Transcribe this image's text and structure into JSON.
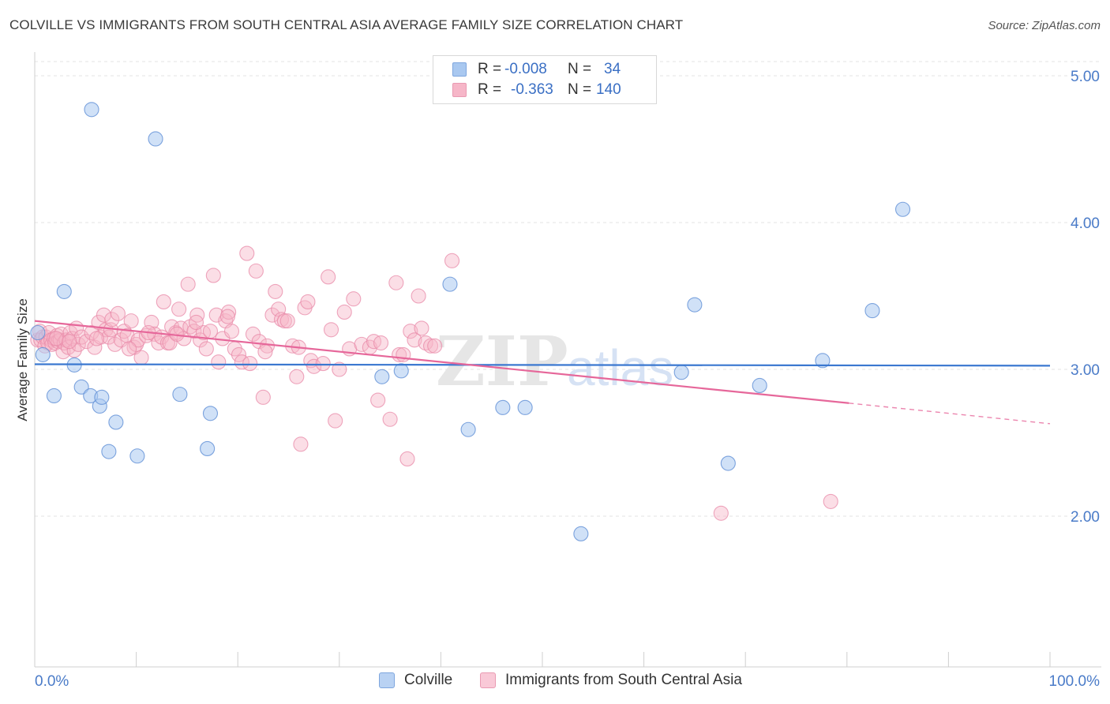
{
  "header": {
    "title": "COLVILLE VS IMMIGRANTS FROM SOUTH CENTRAL ASIA AVERAGE FAMILY SIZE CORRELATION CHART",
    "source": "Source: ZipAtlas.com"
  },
  "legend": {
    "rows": [
      {
        "r_label": "R =",
        "r_value": "-0.008",
        "n_label": "N =",
        "n_value": "34",
        "color": "#a9c8f0"
      },
      {
        "r_label": "R =",
        "r_value": "-0.363",
        "n_label": "N =",
        "n_value": "140",
        "color": "#f6b6c8"
      }
    ]
  },
  "bottom_legend": {
    "series_a": "Colville",
    "series_b": "Immigrants from South Central Asia"
  },
  "colors": {
    "colville_fill": "#a9c8f0",
    "colville_stroke": "#5f8fd6",
    "colville_line": "#3b78d0",
    "immigrants_fill": "#f6b6c8",
    "immigrants_stroke": "#e889a8",
    "immigrants_line": "#e6679a",
    "tick_text": "#4a7bc8",
    "grid": "#e3e3e3"
  },
  "chart_data": {
    "type": "scatter",
    "title": "COLVILLE VS IMMIGRANTS FROM SOUTH CENTRAL ASIA AVERAGE FAMILY SIZE CORRELATION CHART",
    "xlabel": "",
    "ylabel": "Average Family Size",
    "xlim": [
      0,
      100
    ],
    "ylim": [
      1.0,
      5.15
    ],
    "x_tick_labels": [
      "0.0%",
      "100.0%"
    ],
    "y_ticks": [
      2.0,
      3.0,
      4.0,
      5.0
    ],
    "y_tick_labels": [
      "2.00",
      "3.00",
      "4.00",
      "5.00"
    ],
    "grid": "horizontal dashed",
    "legend_position": "top-center",
    "watermark": "ZIPatlas",
    "series": [
      {
        "name": "Colville",
        "r": -0.008,
        "n": 34,
        "trend": {
          "x": [
            0,
            100
          ],
          "y": [
            3.035,
            3.025
          ]
        },
        "points": [
          [
            0.3,
            3.25
          ],
          [
            0.8,
            3.1
          ],
          [
            1.9,
            2.82
          ],
          [
            2.9,
            3.53
          ],
          [
            3.9,
            3.03
          ],
          [
            4.6,
            2.88
          ],
          [
            5.5,
            2.82
          ],
          [
            5.6,
            4.77
          ],
          [
            6.4,
            2.75
          ],
          [
            6.6,
            2.81
          ],
          [
            7.3,
            2.44
          ],
          [
            8.0,
            2.64
          ],
          [
            10.1,
            2.41
          ],
          [
            11.9,
            4.57
          ],
          [
            14.3,
            2.83
          ],
          [
            17.0,
            2.46
          ],
          [
            17.3,
            2.7
          ],
          [
            34.2,
            2.95
          ],
          [
            36.1,
            2.99
          ],
          [
            40.9,
            3.58
          ],
          [
            42.7,
            2.59
          ],
          [
            46.1,
            2.74
          ],
          [
            48.3,
            2.74
          ],
          [
            53.8,
            1.88
          ],
          [
            63.7,
            2.98
          ],
          [
            65.0,
            3.44
          ],
          [
            68.3,
            2.36
          ],
          [
            71.4,
            2.89
          ],
          [
            77.6,
            3.06
          ],
          [
            82.5,
            3.4
          ],
          [
            85.5,
            4.09
          ]
        ]
      },
      {
        "name": "Immigrants from South Central Asia",
        "r": -0.363,
        "n": 140,
        "trend": {
          "x": [
            0,
            80.2
          ],
          "y": [
            3.33,
            2.77
          ]
        },
        "trend_dashed": {
          "x": [
            80.2,
            100
          ],
          "y": [
            2.77,
            2.63
          ]
        },
        "points": [
          [
            0.3,
            3.2
          ],
          [
            0.5,
            3.26
          ],
          [
            0.6,
            3.2
          ],
          [
            0.8,
            3.22
          ],
          [
            1.0,
            3.16
          ],
          [
            1.1,
            3.22
          ],
          [
            1.3,
            3.18
          ],
          [
            1.4,
            3.25
          ],
          [
            1.6,
            3.2
          ],
          [
            1.7,
            3.17
          ],
          [
            1.9,
            3.21
          ],
          [
            2.0,
            3.18
          ],
          [
            2.2,
            3.23
          ],
          [
            2.3,
            3.19
          ],
          [
            2.5,
            3.2
          ],
          [
            2.6,
            3.24
          ],
          [
            2.8,
            3.12
          ],
          [
            2.9,
            3.18
          ],
          [
            3.1,
            3.2
          ],
          [
            3.3,
            3.15
          ],
          [
            3.5,
            3.25
          ],
          [
            3.7,
            3.21
          ],
          [
            3.9,
            3.13
          ],
          [
            4.1,
            3.28
          ],
          [
            4.3,
            3.17
          ],
          [
            4.6,
            3.22
          ],
          [
            5.1,
            3.19
          ],
          [
            5.6,
            3.25
          ],
          [
            5.9,
            3.15
          ],
          [
            6.3,
            3.32
          ],
          [
            6.5,
            3.22
          ],
          [
            6.8,
            3.37
          ],
          [
            7.0,
            3.27
          ],
          [
            7.3,
            3.22
          ],
          [
            7.5,
            3.27
          ],
          [
            7.6,
            3.34
          ],
          [
            7.9,
            3.17
          ],
          [
            8.2,
            3.38
          ],
          [
            8.5,
            3.2
          ],
          [
            8.8,
            3.26
          ],
          [
            9.1,
            3.23
          ],
          [
            9.5,
            3.33
          ],
          [
            9.8,
            3.15
          ],
          [
            10.0,
            3.17
          ],
          [
            10.2,
            3.2
          ],
          [
            10.5,
            3.08
          ],
          [
            11.0,
            3.23
          ],
          [
            11.5,
            3.32
          ],
          [
            11.8,
            3.24
          ],
          [
            12.2,
            3.18
          ],
          [
            12.5,
            3.22
          ],
          [
            12.7,
            3.46
          ],
          [
            13.1,
            3.18
          ],
          [
            13.3,
            3.18
          ],
          [
            13.5,
            3.29
          ],
          [
            13.9,
            3.25
          ],
          [
            14.2,
            3.41
          ],
          [
            14.4,
            3.28
          ],
          [
            14.7,
            3.21
          ],
          [
            15.1,
            3.58
          ],
          [
            15.3,
            3.29
          ],
          [
            15.7,
            3.26
          ],
          [
            16.0,
            3.37
          ],
          [
            16.3,
            3.2
          ],
          [
            16.6,
            3.25
          ],
          [
            16.9,
            3.14
          ],
          [
            17.3,
            3.26
          ],
          [
            17.6,
            3.64
          ],
          [
            17.9,
            3.37
          ],
          [
            18.1,
            3.05
          ],
          [
            18.5,
            3.21
          ],
          [
            18.8,
            3.33
          ],
          [
            19.1,
            3.39
          ],
          [
            19.4,
            3.26
          ],
          [
            19.7,
            3.14
          ],
          [
            20.1,
            3.1
          ],
          [
            20.4,
            3.05
          ],
          [
            20.9,
            3.79
          ],
          [
            21.2,
            3.04
          ],
          [
            21.5,
            3.24
          ],
          [
            21.8,
            3.67
          ],
          [
            22.1,
            3.19
          ],
          [
            22.5,
            2.81
          ],
          [
            22.9,
            3.16
          ],
          [
            23.4,
            3.37
          ],
          [
            23.7,
            3.53
          ],
          [
            24.0,
            3.41
          ],
          [
            24.3,
            3.34
          ],
          [
            24.6,
            3.33
          ],
          [
            24.9,
            3.33
          ],
          [
            25.4,
            3.16
          ],
          [
            25.8,
            2.95
          ],
          [
            26.2,
            2.49
          ],
          [
            26.6,
            3.42
          ],
          [
            26.9,
            3.46
          ],
          [
            27.2,
            3.06
          ],
          [
            27.5,
            3.02
          ],
          [
            28.4,
            3.04
          ],
          [
            28.9,
            3.63
          ],
          [
            29.2,
            3.27
          ],
          [
            29.6,
            2.65
          ],
          [
            30.0,
            3.0
          ],
          [
            30.5,
            3.39
          ],
          [
            31.0,
            3.14
          ],
          [
            31.4,
            3.48
          ],
          [
            32.2,
            3.17
          ],
          [
            33.0,
            3.15
          ],
          [
            33.4,
            3.19
          ],
          [
            33.8,
            2.79
          ],
          [
            34.1,
            3.18
          ],
          [
            35.0,
            2.66
          ],
          [
            35.6,
            3.59
          ],
          [
            35.9,
            3.1
          ],
          [
            36.3,
            3.1
          ],
          [
            36.7,
            2.39
          ],
          [
            37.0,
            3.26
          ],
          [
            37.4,
            3.2
          ],
          [
            37.8,
            3.5
          ],
          [
            38.1,
            3.28
          ],
          [
            38.5,
            3.18
          ],
          [
            39.0,
            3.16
          ],
          [
            39.4,
            3.16
          ],
          [
            41.1,
            3.74
          ],
          [
            67.6,
            2.02
          ],
          [
            78.4,
            2.1
          ],
          [
            2.1,
            3.21
          ],
          [
            3.4,
            3.19
          ],
          [
            6.1,
            3.21
          ],
          [
            9.3,
            3.14
          ],
          [
            11.2,
            3.25
          ],
          [
            14.0,
            3.24
          ],
          [
            15.9,
            3.32
          ],
          [
            19.0,
            3.36
          ],
          [
            22.7,
            3.12
          ],
          [
            26.0,
            3.15
          ]
        ]
      }
    ]
  }
}
